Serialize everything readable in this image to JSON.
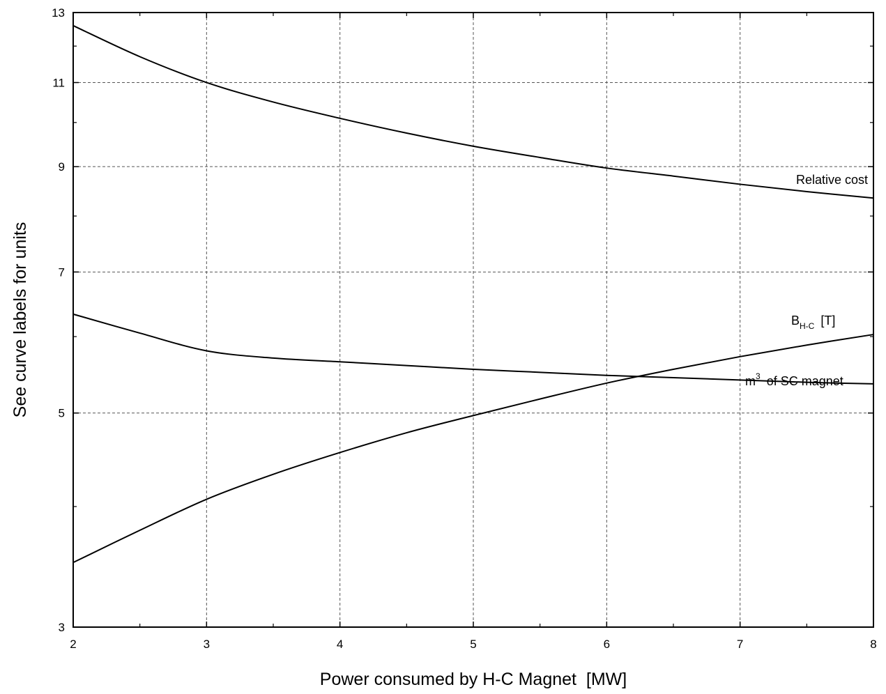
{
  "chart_data": {
    "type": "line",
    "xlabel": "Power consumed by H-C Magnet  [MW]",
    "ylabel": "See curve labels for units",
    "xlim": [
      2,
      8
    ],
    "ylim": [
      3,
      13
    ],
    "yscale": "log",
    "x_ticks": [
      "2",
      "3",
      "4",
      "5",
      "6",
      "7",
      "8"
    ],
    "y_ticks": [
      "3",
      "5",
      "7",
      "9",
      "11",
      "13"
    ],
    "grid": true,
    "series": [
      {
        "name": "Relative cost",
        "x": [
          2,
          2.5,
          3,
          3.5,
          4,
          4.5,
          5,
          5.5,
          6,
          6.5,
          7,
          7.5,
          8
        ],
        "values": [
          12.6,
          11.7,
          11.0,
          10.5,
          10.1,
          9.75,
          9.45,
          9.2,
          8.97,
          8.8,
          8.63,
          8.48,
          8.35
        ]
      },
      {
        "name": "B",
        "name_subscript": "H-C",
        "name_unit": "[T]",
        "x": [
          2,
          2.5,
          3,
          3.5,
          4,
          4.5,
          5,
          5.5,
          6,
          6.5,
          7,
          7.5,
          8
        ],
        "values": [
          3.5,
          3.78,
          4.07,
          4.32,
          4.55,
          4.77,
          4.97,
          5.17,
          5.37,
          5.55,
          5.72,
          5.88,
          6.03
        ]
      },
      {
        "name": "m",
        "name_superscript": "3",
        "name_suffix": "of SC magnet",
        "x": [
          2,
          2.5,
          3,
          3.5,
          4,
          4.5,
          5,
          5.5,
          6,
          6.5,
          7,
          7.5,
          8
        ],
        "values": [
          6.33,
          6.05,
          5.8,
          5.7,
          5.65,
          5.6,
          5.55,
          5.51,
          5.47,
          5.44,
          5.41,
          5.38,
          5.36
        ]
      }
    ]
  }
}
